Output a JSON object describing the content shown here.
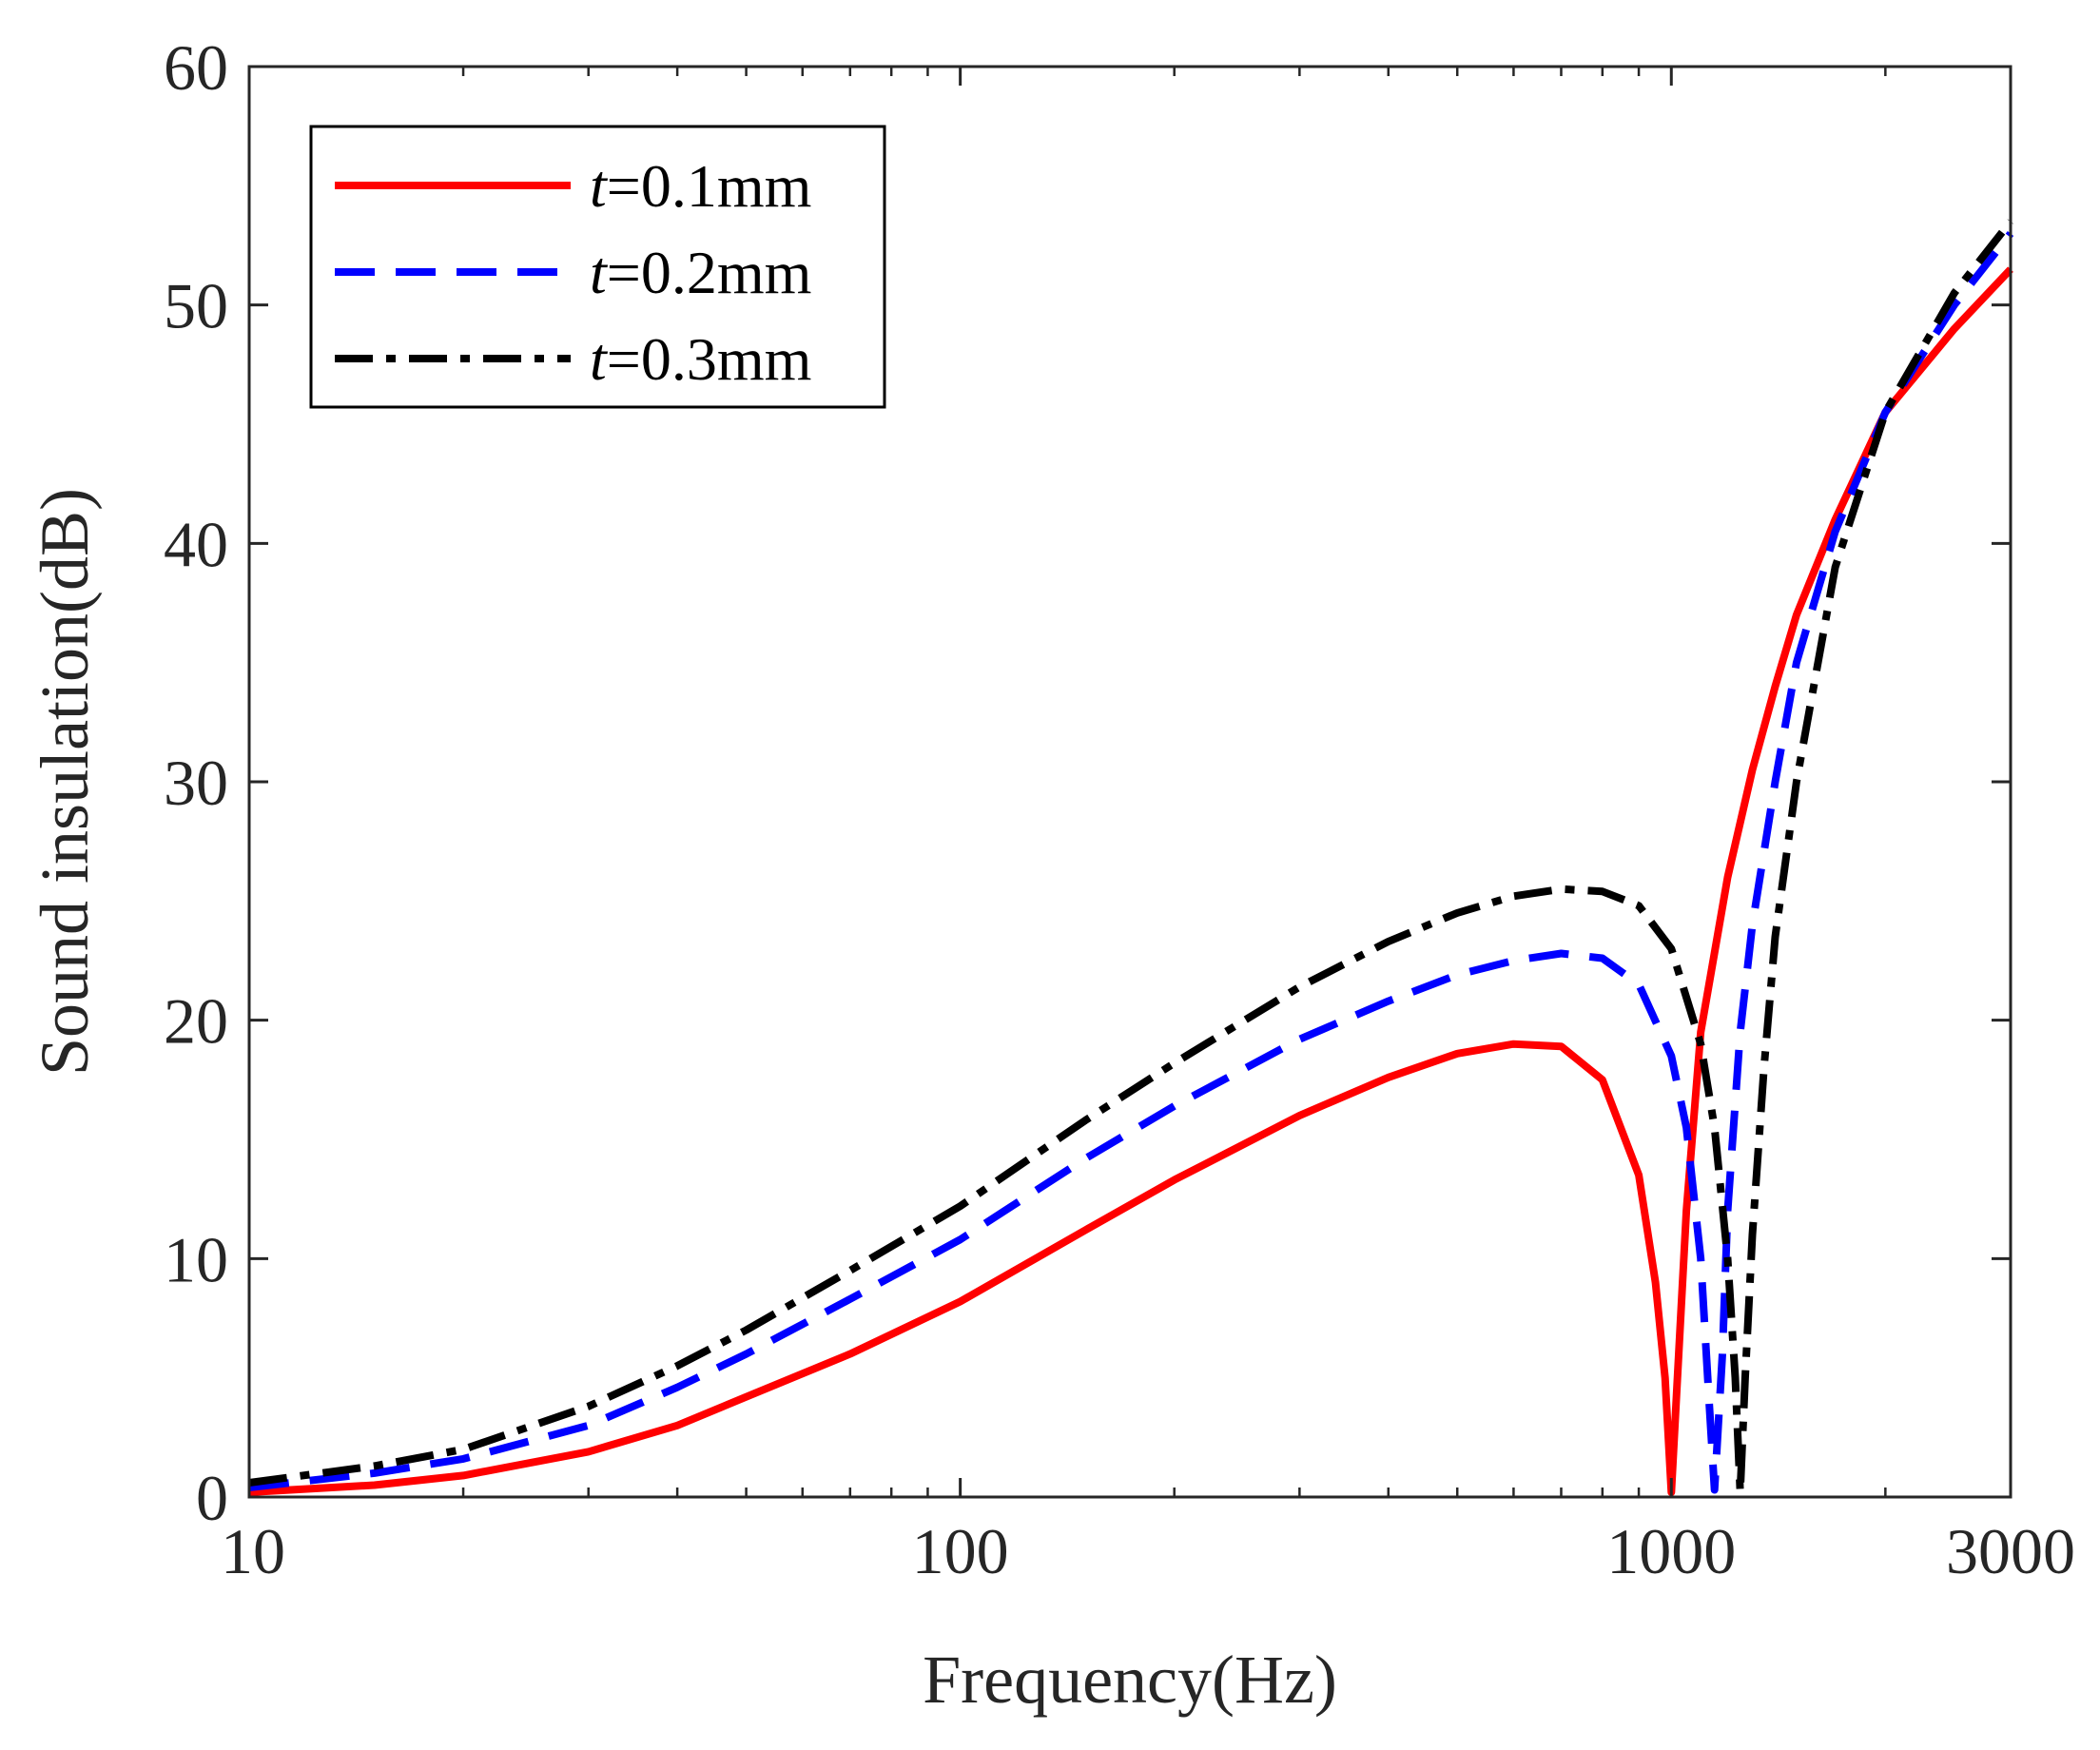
{
  "chart_data": {
    "type": "line",
    "title": "",
    "xlabel": "Frequency(Hz)",
    "ylabel": "Sound insulation(dB)",
    "xscale": "log",
    "xlim": [
      10,
      3000
    ],
    "ylim": [
      0,
      60
    ],
    "xticks": [
      {
        "value": 10,
        "label": "10"
      },
      {
        "value": 100,
        "label": "100"
      },
      {
        "value": 1000,
        "label": "1000"
      },
      {
        "value": 3000,
        "label": "3000"
      }
    ],
    "yticks": [
      {
        "value": 0,
        "label": "0"
      },
      {
        "value": 10,
        "label": "10"
      },
      {
        "value": 20,
        "label": "20"
      },
      {
        "value": 30,
        "label": "30"
      },
      {
        "value": 40,
        "label": "40"
      },
      {
        "value": 50,
        "label": "50"
      },
      {
        "value": 60,
        "label": "60"
      }
    ],
    "grid": false,
    "legend_position": "top-left",
    "series": [
      {
        "name": "t=0.1mm",
        "name_italic": "t",
        "name_rest": "=0.1mm",
        "color": "#ff0000",
        "style": "solid",
        "x": [
          10,
          15,
          20,
          30,
          40,
          50,
          70,
          100,
          150,
          200,
          300,
          400,
          500,
          600,
          700,
          800,
          900,
          950,
          980,
          1000,
          1020,
          1050,
          1100,
          1200,
          1300,
          1400,
          1500,
          1700,
          2000,
          2500,
          3000
        ],
        "y": [
          0.2,
          0.5,
          0.9,
          1.9,
          3.0,
          4.2,
          6.0,
          8.2,
          11.2,
          13.3,
          16.0,
          17.6,
          18.6,
          19.0,
          18.9,
          17.5,
          13.5,
          9.0,
          5.0,
          0.2,
          5.0,
          12.0,
          19.5,
          26.0,
          30.5,
          34.0,
          37.0,
          41.0,
          45.5,
          49.0,
          51.5
        ]
      },
      {
        "name": "t=0.2mm",
        "name_italic": "t",
        "name_rest": "=0.2mm",
        "color": "#0000ff",
        "style": "dashed",
        "x": [
          10,
          15,
          20,
          30,
          40,
          50,
          70,
          100,
          150,
          200,
          300,
          400,
          500,
          600,
          700,
          800,
          900,
          1000,
          1050,
          1100,
          1130,
          1150,
          1180,
          1200,
          1250,
          1300,
          1400,
          1500,
          1700,
          2000,
          2500,
          3000
        ],
        "y": [
          0.4,
          1.0,
          1.6,
          3.0,
          4.6,
          6.0,
          8.3,
          10.8,
          14.2,
          16.4,
          19.2,
          20.8,
          21.9,
          22.5,
          22.8,
          22.6,
          21.5,
          18.5,
          15.5,
          10.0,
          4.0,
          0.3,
          6.0,
          12.0,
          19.5,
          24.0,
          30.0,
          35.0,
          40.5,
          45.5,
          50.0,
          53.0
        ]
      },
      {
        "name": "t=0.3mm",
        "name_italic": "t",
        "name_rest": "=0.3mm",
        "color": "#000000",
        "style": "dashdot",
        "x": [
          10,
          15,
          20,
          30,
          40,
          50,
          70,
          100,
          150,
          200,
          300,
          400,
          500,
          600,
          700,
          800,
          900,
          1000,
          1100,
          1150,
          1200,
          1230,
          1250,
          1270,
          1300,
          1350,
          1400,
          1500,
          1700,
          2000,
          2500,
          3000
        ],
        "y": [
          0.6,
          1.3,
          2.0,
          3.8,
          5.5,
          7.0,
          9.5,
          12.2,
          15.8,
          18.2,
          21.4,
          23.3,
          24.5,
          25.2,
          25.5,
          25.4,
          24.8,
          23.0,
          19.0,
          15.5,
          10.0,
          5.0,
          0.2,
          5.0,
          11.0,
          18.0,
          23.5,
          30.0,
          39.0,
          45.5,
          50.5,
          53.5
        ]
      }
    ]
  }
}
